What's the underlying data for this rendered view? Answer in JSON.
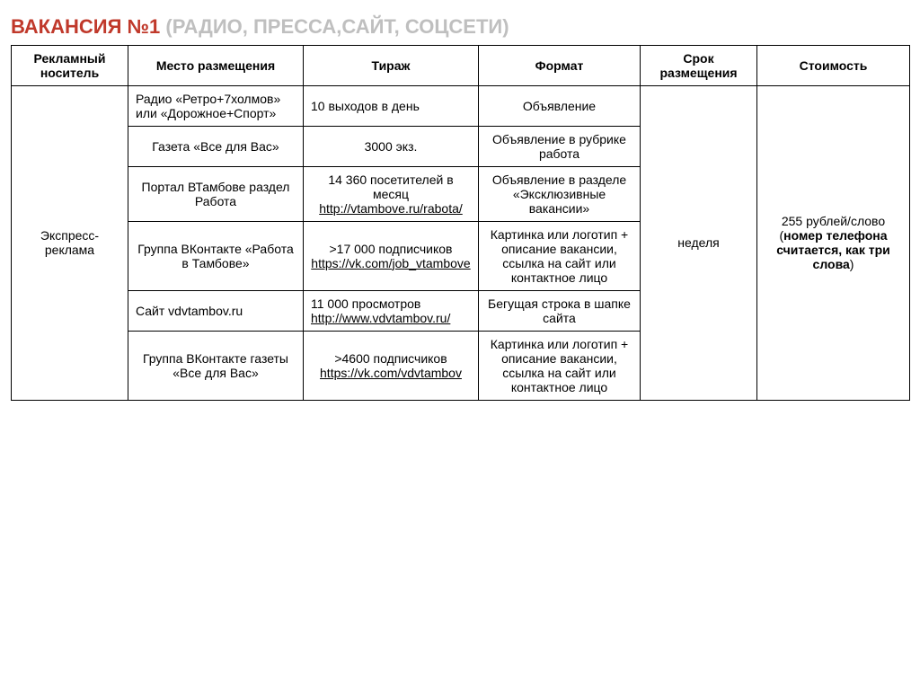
{
  "title": {
    "red": "ВАКАНСИЯ №1",
    "grey": " (РАДИО, ПРЕССА,САЙТ, СОЦСЕТИ)"
  },
  "table": {
    "headers": {
      "carrier": "Рекламный носитель",
      "place": "Место размещения",
      "circulation": "Тираж",
      "format": "Формат",
      "duration": "Срок размещения",
      "cost": "Стоимость"
    },
    "carrier": "Экспресс-реклама",
    "duration": "неделя",
    "cost": {
      "line1": "255 рублей/слово",
      "line2_open": "(",
      "line2_bold": "номер телефона считается, как три слова",
      "line2_close": ")"
    },
    "rows": [
      {
        "place": "Радио «Ретро+7холмов» или «Дорожное+Спорт»",
        "circ_text": "10 выходов в день",
        "circ_link": "",
        "format": "Объявление"
      },
      {
        "place": "Газета «Все для Вас»",
        "circ_text": "3000 экз.",
        "circ_link": "",
        "format": "Объявление в рубрике работа"
      },
      {
        "place": "Портал ВТамбове раздел Работа",
        "circ_text": "14 360 посетителей в месяц ",
        "circ_link": "http://vtambove.ru/rabota/",
        "format": "Объявление в разделе «Эксклюзивные вакансии»"
      },
      {
        "place": "Группа ВКонтакте «Работа в Тамбове»",
        "circ_text": ">17 000 подписчиков ",
        "circ_link": "https://vk.com/job_vtambove",
        "format": "Картинка или логотип + описание вакансии, ссылка на сайт или контактное лицо"
      },
      {
        "place": "Сайт vdvtambov.ru",
        "circ_text": "11 000 просмотров ",
        "circ_link": "http://www.vdvtambov.ru/",
        "format": "Бегущая строка в шапке сайта"
      },
      {
        "place": "Группа ВКонтакте газеты «Все для Вас»",
        "circ_text": ">4600 подписчиков ",
        "circ_link": "https://vk.com/vdvtambov",
        "format": "Картинка или логотип + описание вакансии, ссылка на сайт или контактное лицо"
      }
    ]
  }
}
